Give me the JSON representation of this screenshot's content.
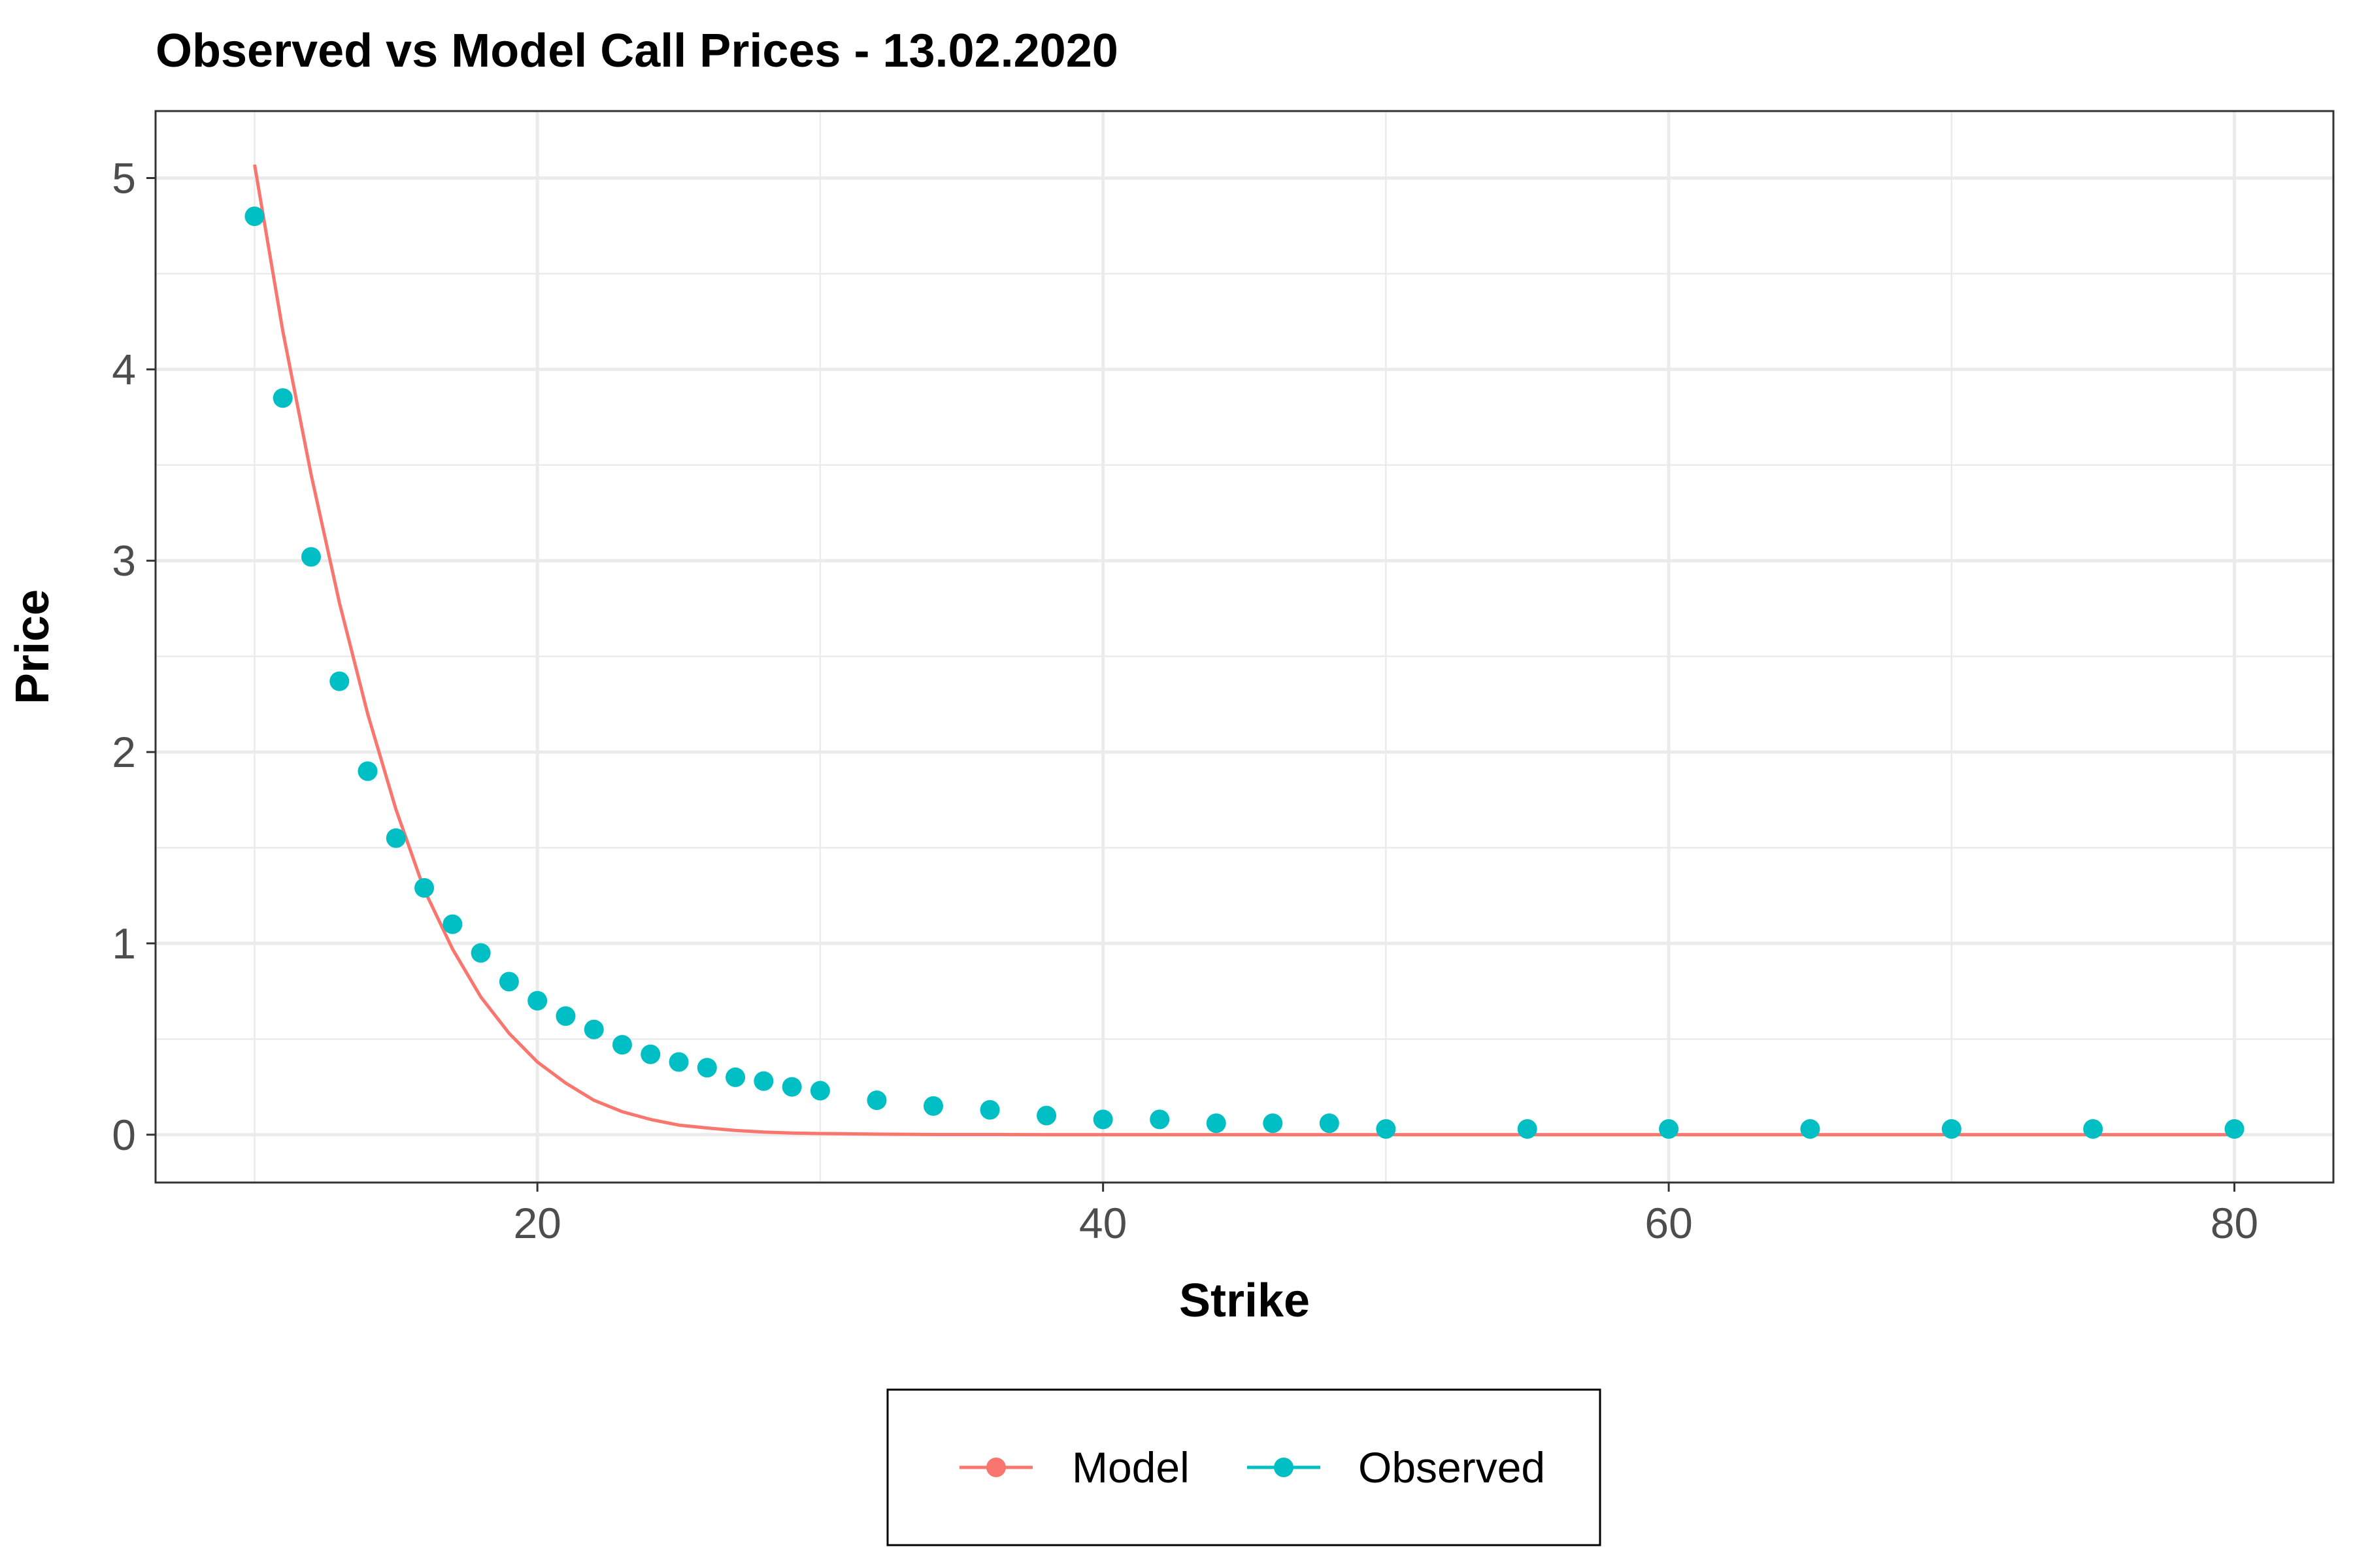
{
  "chart_data": {
    "type": "scatter",
    "title": "Observed vs Model Call Prices - 13.02.2020",
    "xlabel": "Strike",
    "ylabel": "Price",
    "xlim": [
      6.5,
      83.5
    ],
    "ylim": [
      -0.25,
      5.35
    ],
    "x_ticks": [
      20,
      40,
      60,
      80
    ],
    "y_ticks": [
      0,
      1,
      2,
      3,
      4,
      5
    ],
    "grid": true,
    "legend_position": "bottom",
    "series": [
      {
        "name": "Model",
        "color": "#F8766D",
        "style": "line",
        "x": [
          10,
          11,
          12,
          13,
          14,
          15,
          16,
          17,
          18,
          19,
          20,
          21,
          22,
          23,
          24,
          25,
          26,
          27,
          28,
          29,
          30,
          32,
          34,
          36,
          38,
          40,
          42,
          44,
          46,
          48,
          50,
          55,
          60,
          65,
          70,
          75,
          80
        ],
        "y": [
          5.07,
          4.2,
          3.45,
          2.78,
          2.2,
          1.7,
          1.28,
          0.97,
          0.72,
          0.53,
          0.38,
          0.27,
          0.18,
          0.12,
          0.08,
          0.05,
          0.035,
          0.022,
          0.014,
          0.009,
          0.006,
          0.003,
          0.001,
          0.001,
          0,
          0,
          0,
          0,
          0,
          0,
          0,
          0,
          0,
          0,
          0,
          0,
          0
        ]
      },
      {
        "name": "Observed",
        "color": "#00BFC4",
        "style": "points",
        "x": [
          10,
          11,
          12,
          13,
          14,
          15,
          16,
          17,
          18,
          19,
          20,
          21,
          22,
          23,
          24,
          25,
          26,
          27,
          28,
          29,
          30,
          32,
          34,
          36,
          38,
          40,
          42,
          44,
          46,
          48,
          50,
          55,
          60,
          65,
          70,
          75,
          80
        ],
        "y": [
          4.8,
          3.85,
          3.02,
          2.37,
          1.9,
          1.55,
          1.29,
          1.1,
          0.95,
          0.8,
          0.7,
          0.62,
          0.55,
          0.47,
          0.42,
          0.38,
          0.35,
          0.3,
          0.28,
          0.25,
          0.23,
          0.18,
          0.15,
          0.13,
          0.1,
          0.08,
          0.08,
          0.06,
          0.06,
          0.06,
          0.03,
          0.03,
          0.03,
          0.03,
          0.03,
          0.03,
          0.03
        ]
      }
    ]
  }
}
